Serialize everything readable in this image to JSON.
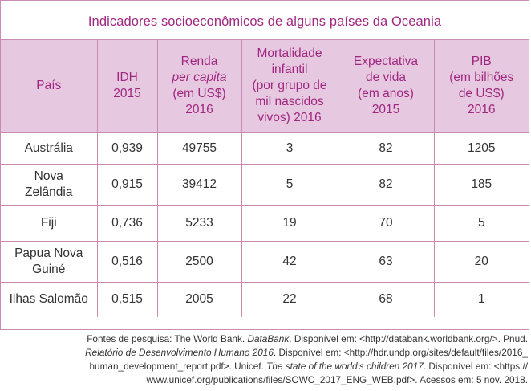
{
  "title": "Indicadores socioeconômicos de alguns países da Oceania",
  "headers": {
    "pais": "País",
    "idh": [
      "IDH",
      "2015"
    ],
    "renda": [
      "Renda",
      "per capita",
      "(em US$)",
      "2016"
    ],
    "mortalidade": [
      "Mortalidade",
      "infantil",
      "(por grupo de",
      "mil nascidos",
      "vivos) 2016"
    ],
    "expectativa": [
      "Expectativa",
      "de vida",
      "(em anos)",
      "2015"
    ],
    "pib": [
      "PIB",
      "(em bilhões",
      "de US$)",
      "2016"
    ]
  },
  "rows": [
    {
      "country": [
        "Austrália"
      ],
      "idh": "0,939",
      "renda": "49755",
      "mortalidade": "3",
      "expectativa": "82",
      "pib": "1205"
    },
    {
      "country": [
        "Nova",
        "Zelândia"
      ],
      "idh": "0,915",
      "renda": "39412",
      "mortalidade": "5",
      "expectativa": "82",
      "pib": "185"
    },
    {
      "country": [
        "Fiji"
      ],
      "idh": "0,736",
      "renda": "5233",
      "mortalidade": "19",
      "expectativa": "70",
      "pib": "5"
    },
    {
      "country": [
        "Papua Nova",
        "Guiné"
      ],
      "idh": "0,516",
      "renda": "2500",
      "mortalidade": "42",
      "expectativa": "63",
      "pib": "20"
    },
    {
      "country": [
        "Ilhas Salomão"
      ],
      "idh": "0,515",
      "renda": "2005",
      "mortalidade": "22",
      "expectativa": "68",
      "pib": "1"
    }
  ],
  "sources": {
    "l1a": "Fontes de pesquisa: The World Bank. ",
    "l1b": "DataBank",
    "l1c": ". Disponível em: <http://databank.worldbank.org/>. Pnud.",
    "l2a": "Relatório de Desenvolvimento Humano 2016",
    "l2b": ". Disponível em: <http://hdr.undp.org/sites/default/files/2016_",
    "l3a": "human_development_report.pdf>. Unicef. ",
    "l3b": "The state of the world's children 2017",
    "l3c": ". Disponível em: <https://",
    "l4": "www.unicef.org/publications/files/SOWC_2017_ENG_WEB.pdf>. Acessos em: 5 nov. 2018."
  }
}
